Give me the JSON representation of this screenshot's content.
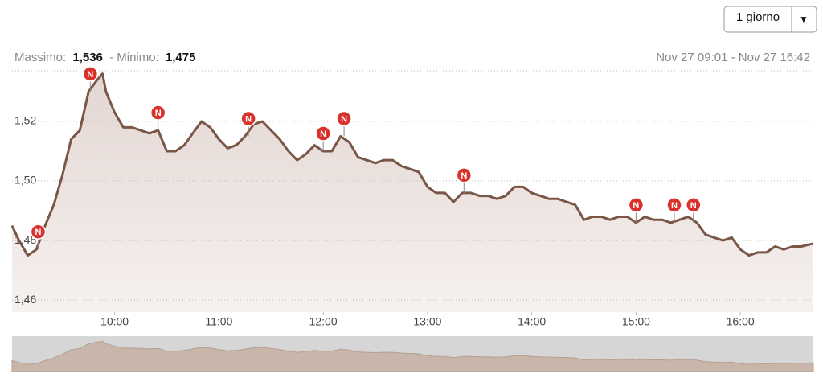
{
  "header": {
    "max_label": "Massimo:",
    "max_value": "1,536",
    "separator": "- Minimo:",
    "min_value": "1,475",
    "range": "Nov 27 09:01 - Nov 27 16:42"
  },
  "selector": {
    "label": "1 giorno",
    "arrow": "▼"
  },
  "chart_data": {
    "type": "line",
    "x": [
      "09:01",
      "09:05",
      "09:10",
      "09:15",
      "09:20",
      "09:25",
      "09:30",
      "09:35",
      "09:40",
      "09:45",
      "09:50",
      "09:53",
      "09:55",
      "10:00",
      "10:05",
      "10:10",
      "10:15",
      "10:20",
      "10:25",
      "10:30",
      "10:35",
      "10:40",
      "10:45",
      "10:50",
      "10:55",
      "11:00",
      "11:05",
      "11:10",
      "11:15",
      "11:20",
      "11:25",
      "11:30",
      "11:35",
      "11:40",
      "11:45",
      "11:50",
      "11:55",
      "12:00",
      "12:05",
      "12:10",
      "12:15",
      "12:20",
      "12:25",
      "12:30",
      "12:35",
      "12:40",
      "12:45",
      "12:50",
      "12:55",
      "13:00",
      "13:05",
      "13:10",
      "13:15",
      "13:20",
      "13:25",
      "13:30",
      "13:35",
      "13:40",
      "13:45",
      "13:50",
      "13:55",
      "14:00",
      "14:05",
      "14:10",
      "14:15",
      "14:20",
      "14:25",
      "14:30",
      "14:35",
      "14:40",
      "14:45",
      "14:50",
      "14:55",
      "15:00",
      "15:05",
      "15:10",
      "15:15",
      "15:20",
      "15:25",
      "15:30",
      "15:35",
      "15:40",
      "15:45",
      "15:50",
      "15:55",
      "16:00",
      "16:05",
      "16:10",
      "16:15",
      "16:20",
      "16:25",
      "16:30",
      "16:35",
      "16:42"
    ],
    "series": [
      {
        "color": "#7a5646",
        "values": [
          1.485,
          1.48,
          1.475,
          1.477,
          1.485,
          1.492,
          1.502,
          1.514,
          1.517,
          1.53,
          1.534,
          1.536,
          1.53,
          1.523,
          1.518,
          1.518,
          1.517,
          1.516,
          1.517,
          1.51,
          1.51,
          1.512,
          1.516,
          1.52,
          1.518,
          1.514,
          1.511,
          1.512,
          1.515,
          1.519,
          1.52,
          1.517,
          1.514,
          1.51,
          1.507,
          1.509,
          1.512,
          1.51,
          1.51,
          1.515,
          1.513,
          1.508,
          1.507,
          1.506,
          1.507,
          1.507,
          1.505,
          1.504,
          1.503,
          1.498,
          1.496,
          1.496,
          1.493,
          1.496,
          1.496,
          1.495,
          1.495,
          1.494,
          1.495,
          1.498,
          1.498,
          1.496,
          1.495,
          1.494,
          1.494,
          1.493,
          1.492,
          1.487,
          1.488,
          1.488,
          1.487,
          1.488,
          1.488,
          1.486,
          1.488,
          1.487,
          1.487,
          1.486,
          1.487,
          1.488,
          1.486,
          1.482,
          1.481,
          1.48,
          1.481,
          1.477,
          1.475,
          1.476,
          1.476,
          1.478,
          1.477,
          1.478,
          1.478,
          1.479
        ]
      }
    ],
    "news": {
      "label": "N",
      "x": [
        "09:16",
        "09:46",
        "10:25",
        "11:17",
        "12:00",
        "12:12",
        "13:21",
        "15:00",
        "15:22",
        "15:33"
      ]
    },
    "xlim": [
      "09:01",
      "16:42"
    ],
    "xticks": [
      "10:00",
      "11:00",
      "12:00",
      "13:00",
      "14:00",
      "15:00",
      "16:00"
    ],
    "ylim": [
      1.456,
      1.537
    ],
    "yticks": [
      {
        "value": 1.46,
        "label": "1,46"
      },
      {
        "value": 1.48,
        "label": "1,48"
      },
      {
        "value": 1.5,
        "label": "1,50"
      },
      {
        "value": 1.52,
        "label": "1,52"
      }
    ],
    "grid": true
  }
}
